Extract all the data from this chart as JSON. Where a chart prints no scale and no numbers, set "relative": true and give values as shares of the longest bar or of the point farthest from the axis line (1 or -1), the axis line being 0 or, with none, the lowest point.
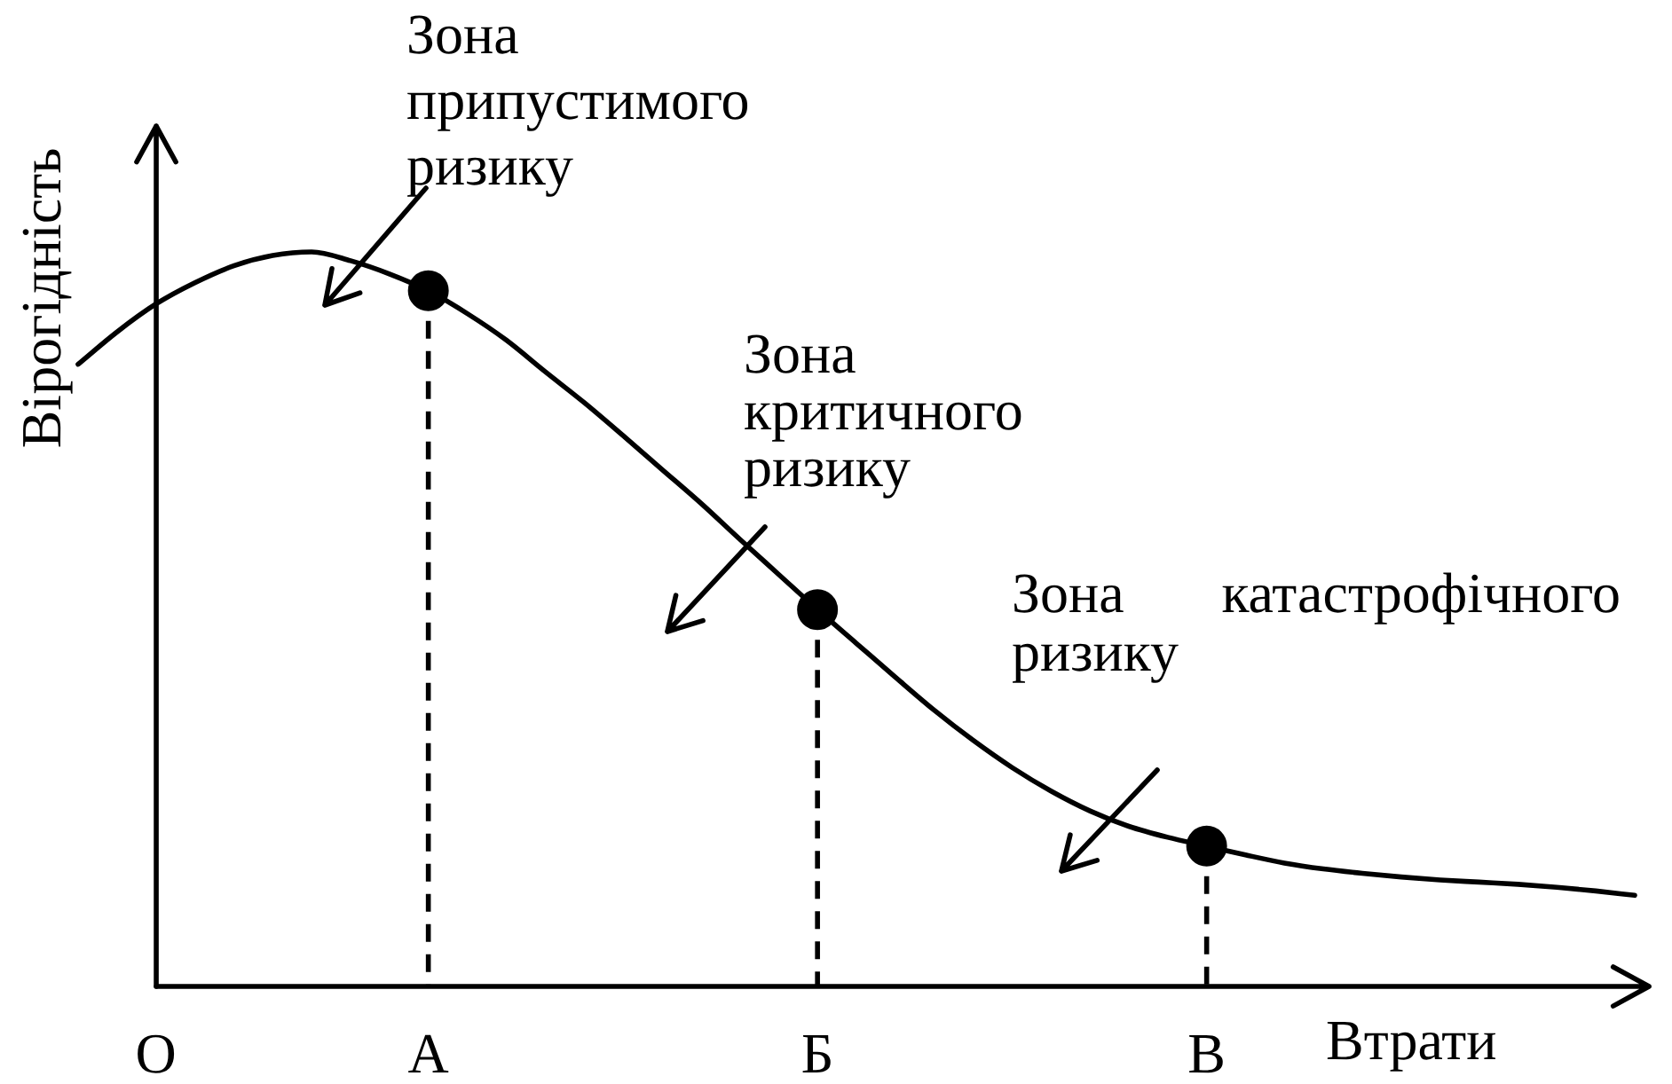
{
  "chart_data": {
    "type": "line",
    "xlabel": "Втрати",
    "ylabel": "Вірогідність",
    "categories": [
      null,
      null,
      "О",
      null,
      null,
      null,
      null,
      null,
      null,
      "А",
      null,
      null,
      null,
      null,
      null,
      null,
      null,
      null,
      null,
      "Б",
      null,
      null,
      null,
      null,
      null,
      null,
      null,
      null,
      null,
      "В",
      null,
      null,
      null,
      null,
      null,
      null,
      null,
      null,
      null,
      null,
      null
    ],
    "relative": true,
    "series": [
      {
        "color": "#000000",
        "values": [
          0.847,
          0.891,
          0.929,
          0.958,
          0.981,
          0.995,
          1,
          0.988,
          0.97,
          0.947,
          0.916,
          0.88,
          0.837,
          0.795,
          0.75,
          0.704,
          0.658,
          0.609,
          0.561,
          0.513,
          0.467,
          0.421,
          0.376,
          0.335,
          0.298,
          0.266,
          0.239,
          0.218,
          0.203,
          0.191,
          0.179,
          0.168,
          0.16,
          0.154,
          0.149,
          0.145,
          0.142,
          0.139,
          0.135,
          0.13,
          0.124
        ]
      },
      {
        "type": "lollipop",
        "color": "#000000",
        "marker": "circle",
        "line_style": "dashed",
        "values": [
          null,
          null,
          null,
          null,
          null,
          null,
          null,
          null,
          null,
          0.947,
          null,
          null,
          null,
          null,
          null,
          null,
          null,
          null,
          null,
          0.513,
          null,
          null,
          null,
          null,
          null,
          null,
          null,
          null,
          null,
          0.191,
          null,
          null,
          null,
          null,
          null,
          null,
          null,
          null,
          null,
          null,
          null
        ]
      }
    ],
    "annotations": [
      "Зона припустимого ризику",
      "Зона критичного ризику",
      "Зона катастрофічного ризику"
    ]
  }
}
